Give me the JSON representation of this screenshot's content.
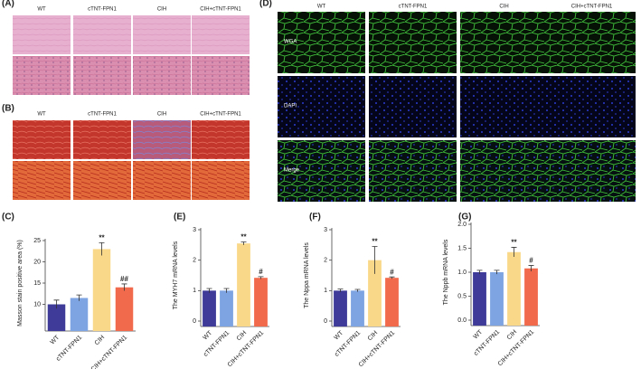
{
  "image_panels": [
    {
      "label": "(A)",
      "columns": [
        "WT",
        "cTNT-FPN1",
        "CIH",
        "CIH+cTNT-FPN1"
      ]
    },
    {
      "label": "(B)",
      "columns": [
        "WT",
        "cTNT-FPN1",
        "CIH",
        "CIH+cTNT-FPN1"
      ]
    },
    {
      "label": "(D)",
      "columns": [
        "WT",
        "cTNT-FPN1",
        "CIH",
        "CIH+cTNT-FPN1"
      ],
      "rows": [
        "WGA",
        "DAPI",
        "Merge"
      ]
    }
  ],
  "chart_data": [
    {
      "type": "bar",
      "panel_label": "(C)",
      "y_label": "Masson stain positive area (%)",
      "categories": [
        "WT",
        "cTNT-FPN1",
        "CIH",
        "CIH+cTNT-FPN1"
      ],
      "values": [
        10,
        11.5,
        23,
        14
      ],
      "errors": [
        1,
        0.7,
        1.5,
        0.8
      ],
      "annotations": [
        null,
        null,
        "**",
        "##"
      ],
      "colors": [
        "#3e3c98",
        "#7ea4e2",
        "#fad88a",
        "#f26a4c"
      ],
      "ylim": [
        5,
        25
      ],
      "yticks": [
        10,
        15,
        20,
        25
      ]
    },
    {
      "type": "bar",
      "panel_label": "(E)",
      "y_label": "The MYH7 mRNA levels",
      "categories": [
        "WT",
        "cTNT-FPN1",
        "CIH",
        "CIH+cTNT-FPN1"
      ],
      "values": [
        1.0,
        1.0,
        2.55,
        1.42
      ],
      "errors": [
        0.07,
        0.07,
        0.05,
        0.04
      ],
      "annotations": [
        null,
        null,
        "**",
        "#"
      ],
      "colors": [
        "#3e3c98",
        "#7ea4e2",
        "#fad88a",
        "#f26a4c"
      ],
      "ylim": [
        0,
        3
      ],
      "yticks": [
        0,
        1,
        2,
        3
      ]
    },
    {
      "type": "bar",
      "panel_label": "(F)",
      "y_label": "The Nppa mRNA levels",
      "categories": [
        "WT",
        "cTNT-FPN1",
        "CIH",
        "CIH+cTNT-FPN1"
      ],
      "values": [
        1.0,
        1.0,
        2.0,
        1.42
      ],
      "errors": [
        0.05,
        0.04,
        0.45,
        0.03
      ],
      "annotations": [
        null,
        null,
        "**",
        "#"
      ],
      "colors": [
        "#3e3c98",
        "#7ea4e2",
        "#fad88a",
        "#f26a4c"
      ],
      "ylim": [
        0,
        3
      ],
      "yticks": [
        0,
        1,
        2,
        3
      ]
    },
    {
      "type": "bar",
      "panel_label": "(G)",
      "y_label": "The Nppb mRNA levels",
      "categories": [
        "WT",
        "cTNT-FPN1",
        "CIH",
        "CIH+cTNT-FPN1"
      ],
      "values": [
        1.0,
        1.0,
        1.42,
        1.08
      ],
      "errors": [
        0.04,
        0.04,
        0.1,
        0.06
      ],
      "annotations": [
        null,
        null,
        "**",
        "#"
      ],
      "colors": [
        "#3e3c98",
        "#7ea4e2",
        "#fad88a",
        "#f26a4c"
      ],
      "ylim": [
        0,
        2
      ],
      "yticks": [
        {
          "value": 0,
          "label": "0.0"
        },
        {
          "value": 0.5,
          "label": "0.5"
        },
        {
          "value": 1,
          "label": "1.0"
        },
        {
          "value": 1.5,
          "label": "1.5"
        },
        {
          "value": 2,
          "label": "2.0"
        }
      ]
    }
  ]
}
